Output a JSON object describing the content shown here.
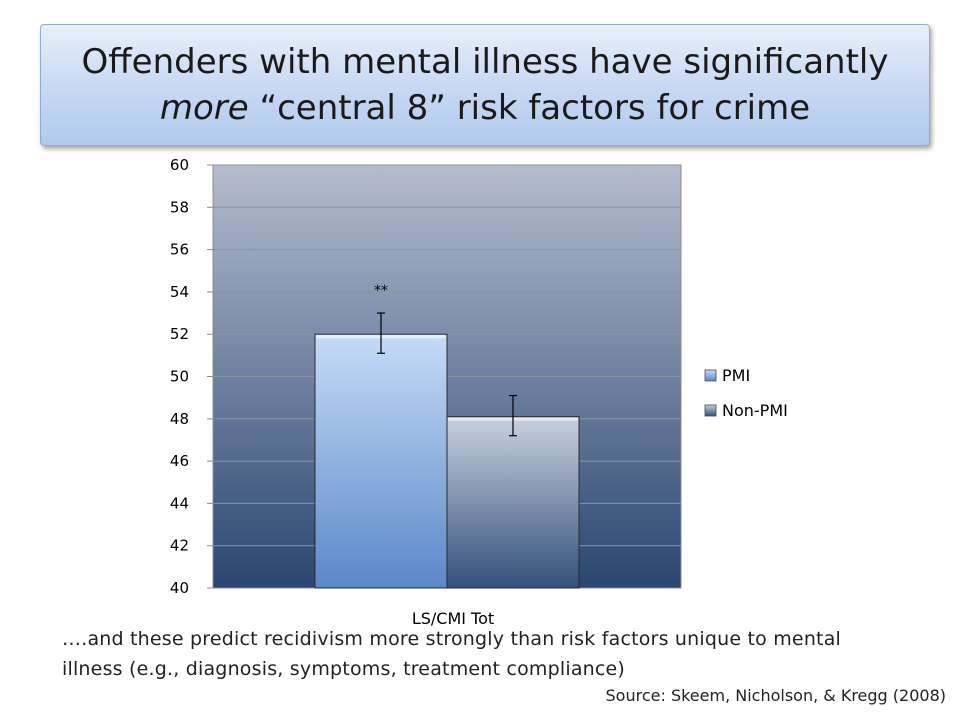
{
  "slide": {
    "title_line1": "Offenders with mental illness have significantly",
    "title_line2_emph": "more",
    "title_line2_rest": " “central 8” risk factors for crime",
    "note_text": "….and these predict recidivism more strongly than risk factors unique to mental illness (e.g., diagnosis, symptoms, treatment compliance)",
    "source_text": "Source: Skeem, Nicholson, & Kregg (2008)"
  },
  "chart_data": {
    "type": "bar",
    "categories": [
      "LS/CMI Tot"
    ],
    "series": [
      {
        "name": "PMI",
        "values": [
          52
        ],
        "error_low": [
          51.1
        ],
        "error_high": [
          53.0
        ],
        "annotation": "**"
      },
      {
        "name": "Non-PMI",
        "values": [
          48.1
        ],
        "error_low": [
          47.2
        ],
        "error_high": [
          49.1
        ]
      }
    ],
    "ylim": [
      40,
      60
    ],
    "yticks": [
      40,
      42,
      44,
      46,
      48,
      50,
      52,
      54,
      56,
      58,
      60
    ],
    "grid": true,
    "legend": "right",
    "colors": {
      "PMI": "#8db4e2",
      "Non-PMI": "#8b9fc2",
      "plot_top": "#b4bccf",
      "plot_bottom": "#2a4670"
    }
  }
}
